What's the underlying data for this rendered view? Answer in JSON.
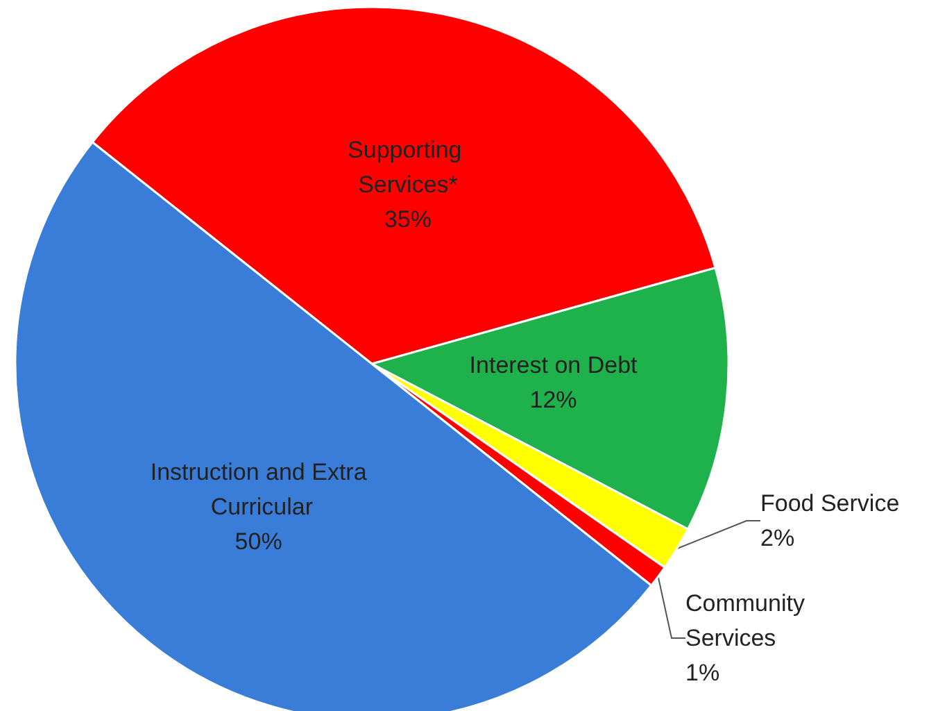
{
  "chart_data": {
    "type": "pie",
    "categories": [
      "Supporting Services*",
      "Interest on Debt",
      "Food Service",
      "Community Services",
      "Instruction and Extra Curricular"
    ],
    "values": [
      35,
      12,
      2,
      1,
      50
    ],
    "value_labels": [
      "35%",
      "12%",
      "2%",
      "1%",
      "50%"
    ],
    "colors": [
      "#ff0000",
      "#1fb14b",
      "#ffff00",
      "#ff0000",
      "#3a7dd8"
    ],
    "data_labels": true
  }
}
